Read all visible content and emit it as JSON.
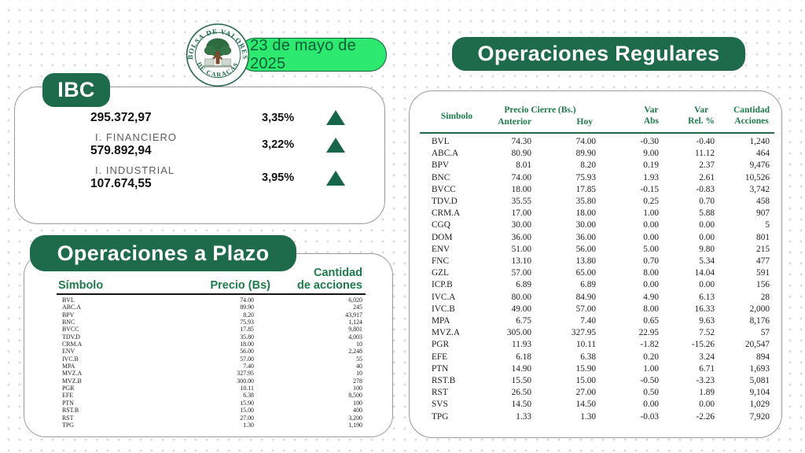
{
  "header": {
    "date": "23 de mayo de 2025",
    "logo": {
      "top_text": "BOLSA DE VALORES",
      "bottom_text": "DE CARACAS"
    }
  },
  "ibc": {
    "title": "IBC",
    "rows": [
      {
        "label": "",
        "value": "295.372,97",
        "pct": "3,35%",
        "direction": "up"
      },
      {
        "label": "I. FINANCIERO",
        "value": "579.892,94",
        "pct": "3,22%",
        "direction": "up"
      },
      {
        "label": "I. INDUSTRIAL",
        "value": "107.674,55",
        "pct": "3,95%",
        "direction": "up"
      }
    ]
  },
  "plazo": {
    "title": "Operaciones a Plazo",
    "headers": {
      "symbol": "Símbolo",
      "price": "Precio (Bs)",
      "qty_line1": "Cantidad",
      "qty_line2": "de acciones"
    },
    "rows": [
      [
        "BVL",
        "74.00",
        "6,020"
      ],
      [
        "ABC.A",
        "89.90",
        "245"
      ],
      [
        "BPV",
        "8.20",
        "43,917"
      ],
      [
        "BNC",
        "75.93",
        "1,124"
      ],
      [
        "BVCC",
        "17.85",
        "9,801"
      ],
      [
        "TDV.D",
        "35.80",
        "4,003"
      ],
      [
        "CRM.A",
        "18.00",
        "10"
      ],
      [
        "ENV",
        "56.00",
        "2,248"
      ],
      [
        "IVC.B",
        "57.00",
        "55"
      ],
      [
        "MPA",
        "7.40",
        "40"
      ],
      [
        "MVZ.A",
        "327.95",
        "10"
      ],
      [
        "MVZ.B",
        "300.00",
        "278"
      ],
      [
        "PGR",
        "10.11",
        "100"
      ],
      [
        "EFE",
        "6.38",
        "8,500"
      ],
      [
        "PTN",
        "15.90",
        "100"
      ],
      [
        "RST.B",
        "15.00",
        "400"
      ],
      [
        "RST",
        "27.00",
        "3,200"
      ],
      [
        "TPG",
        "1.30",
        "1,190"
      ]
    ]
  },
  "regulares": {
    "title": "Operaciones Regulares",
    "headers": {
      "symbol": "Simbolo",
      "price_group": "Precio Cierre (Bs.)",
      "prev": "Anterior",
      "today": "Hoy",
      "var_abs_line1": "Var",
      "var_abs_line2": "Abs",
      "var_rel_line1": "Var",
      "var_rel_line2": "Rel. %",
      "qty_line1": "Cantidad",
      "qty_line2": "Acciones"
    },
    "rows": [
      [
        "BVL",
        "74.30",
        "74.00",
        "-0.30",
        "-0.40",
        "1,240"
      ],
      [
        "ABC.A",
        "80.90",
        "89.90",
        "9.00",
        "11.12",
        "464"
      ],
      [
        "BPV",
        "8.01",
        "8.20",
        "0.19",
        "2.37",
        "9,476"
      ],
      [
        "BNC",
        "74.00",
        "75.93",
        "1.93",
        "2.61",
        "10,526"
      ],
      [
        "BVCC",
        "18.00",
        "17.85",
        "-0.15",
        "-0.83",
        "3,742"
      ],
      [
        "TDV.D",
        "35.55",
        "35.80",
        "0.25",
        "0.70",
        "458"
      ],
      [
        "CRM.A",
        "17.00",
        "18.00",
        "1.00",
        "5.88",
        "907"
      ],
      [
        "CGQ",
        "30.00",
        "30.00",
        "0.00",
        "0.00",
        "5"
      ],
      [
        "DOM",
        "36.00",
        "36.00",
        "0.00",
        "0.00",
        "801"
      ],
      [
        "ENV",
        "51.00",
        "56.00",
        "5.00",
        "9.80",
        "215"
      ],
      [
        "FNC",
        "13.10",
        "13.80",
        "0.70",
        "5.34",
        "477"
      ],
      [
        "GZL",
        "57.00",
        "65.00",
        "8.00",
        "14.04",
        "591"
      ],
      [
        "ICP.B",
        "6.89",
        "6.89",
        "0.00",
        "0.00",
        "156"
      ],
      [
        "IVC.A",
        "80.00",
        "84.90",
        "4.90",
        "6.13",
        "28"
      ],
      [
        "IVC.B",
        "49.00",
        "57.00",
        "8.00",
        "16.33",
        "2,000"
      ],
      [
        "MPA",
        "6.75",
        "7.40",
        "0.65",
        "9.63",
        "8,176"
      ],
      [
        "MVZ.A",
        "305.00",
        "327.95",
        "22.95",
        "7.52",
        "57"
      ],
      [
        "PGR",
        "11.93",
        "10.11",
        "-1.82",
        "-15.26",
        "20,547"
      ],
      [
        "EFE",
        "6.18",
        "6.38",
        "0.20",
        "3.24",
        "894"
      ],
      [
        "PTN",
        "14.90",
        "15.90",
        "1.00",
        "6.71",
        "1,693"
      ],
      [
        "RST.B",
        "15.50",
        "15.00",
        "-0.50",
        "-3.23",
        "5,081"
      ],
      [
        "RST",
        "26.50",
        "27.00",
        "0.50",
        "1.89",
        "9,104"
      ],
      [
        "SVS",
        "14.50",
        "14.50",
        "0.00",
        "0.00",
        "1,029"
      ],
      [
        "TPG",
        "1.33",
        "1.30",
        "-0.03",
        "-2.26",
        "7,920"
      ]
    ]
  },
  "colors": {
    "dark_green": "#1E6B4B",
    "bright_green": "#2DE96F",
    "header_text_green": "#1D7A4A",
    "triangle_green": "#17654A",
    "date_text_green": "#0d6038",
    "card_border_grey": "#9a9a9a",
    "dot_grey": "#dadada"
  }
}
